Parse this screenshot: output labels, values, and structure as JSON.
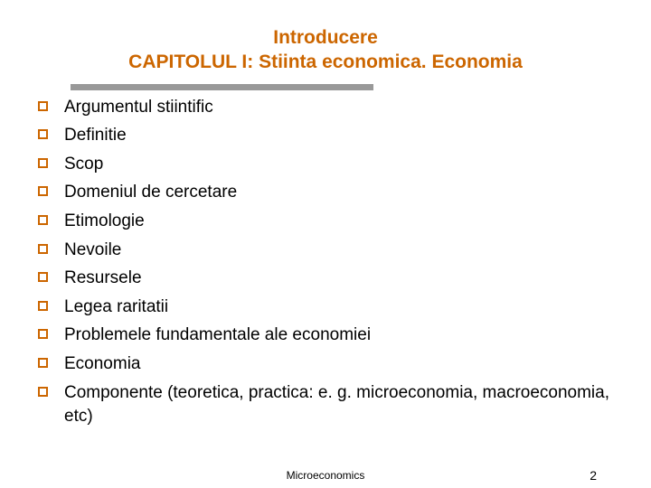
{
  "title": {
    "line1": "Introducere",
    "line2": "CAPITOLUL I: Stiinta economica. Economia"
  },
  "colors": {
    "accent": "#cc6600",
    "divider": "#999999",
    "text": "#000000",
    "background": "#ffffff"
  },
  "typography": {
    "title_fontsize": 21,
    "item_fontsize": 19,
    "footer_fontsize": 12,
    "font_family": "Verdana"
  },
  "marker": {
    "type": "open-square",
    "size": 11,
    "border_width": 2,
    "color": "#cc6600"
  },
  "items": [
    "Argumentul stiintific",
    "Definitie",
    "Scop",
    "Domeniul de cercetare",
    "Etimologie",
    "Nevoile",
    "Resursele",
    "Legea raritatii",
    "Problemele fundamentale ale economiei",
    "Economia",
    "Componente (teoretica, practica: e. g. microeconomia, macroeconomia, etc)"
  ],
  "footer": {
    "title": "Microeconomics",
    "page": "2"
  }
}
